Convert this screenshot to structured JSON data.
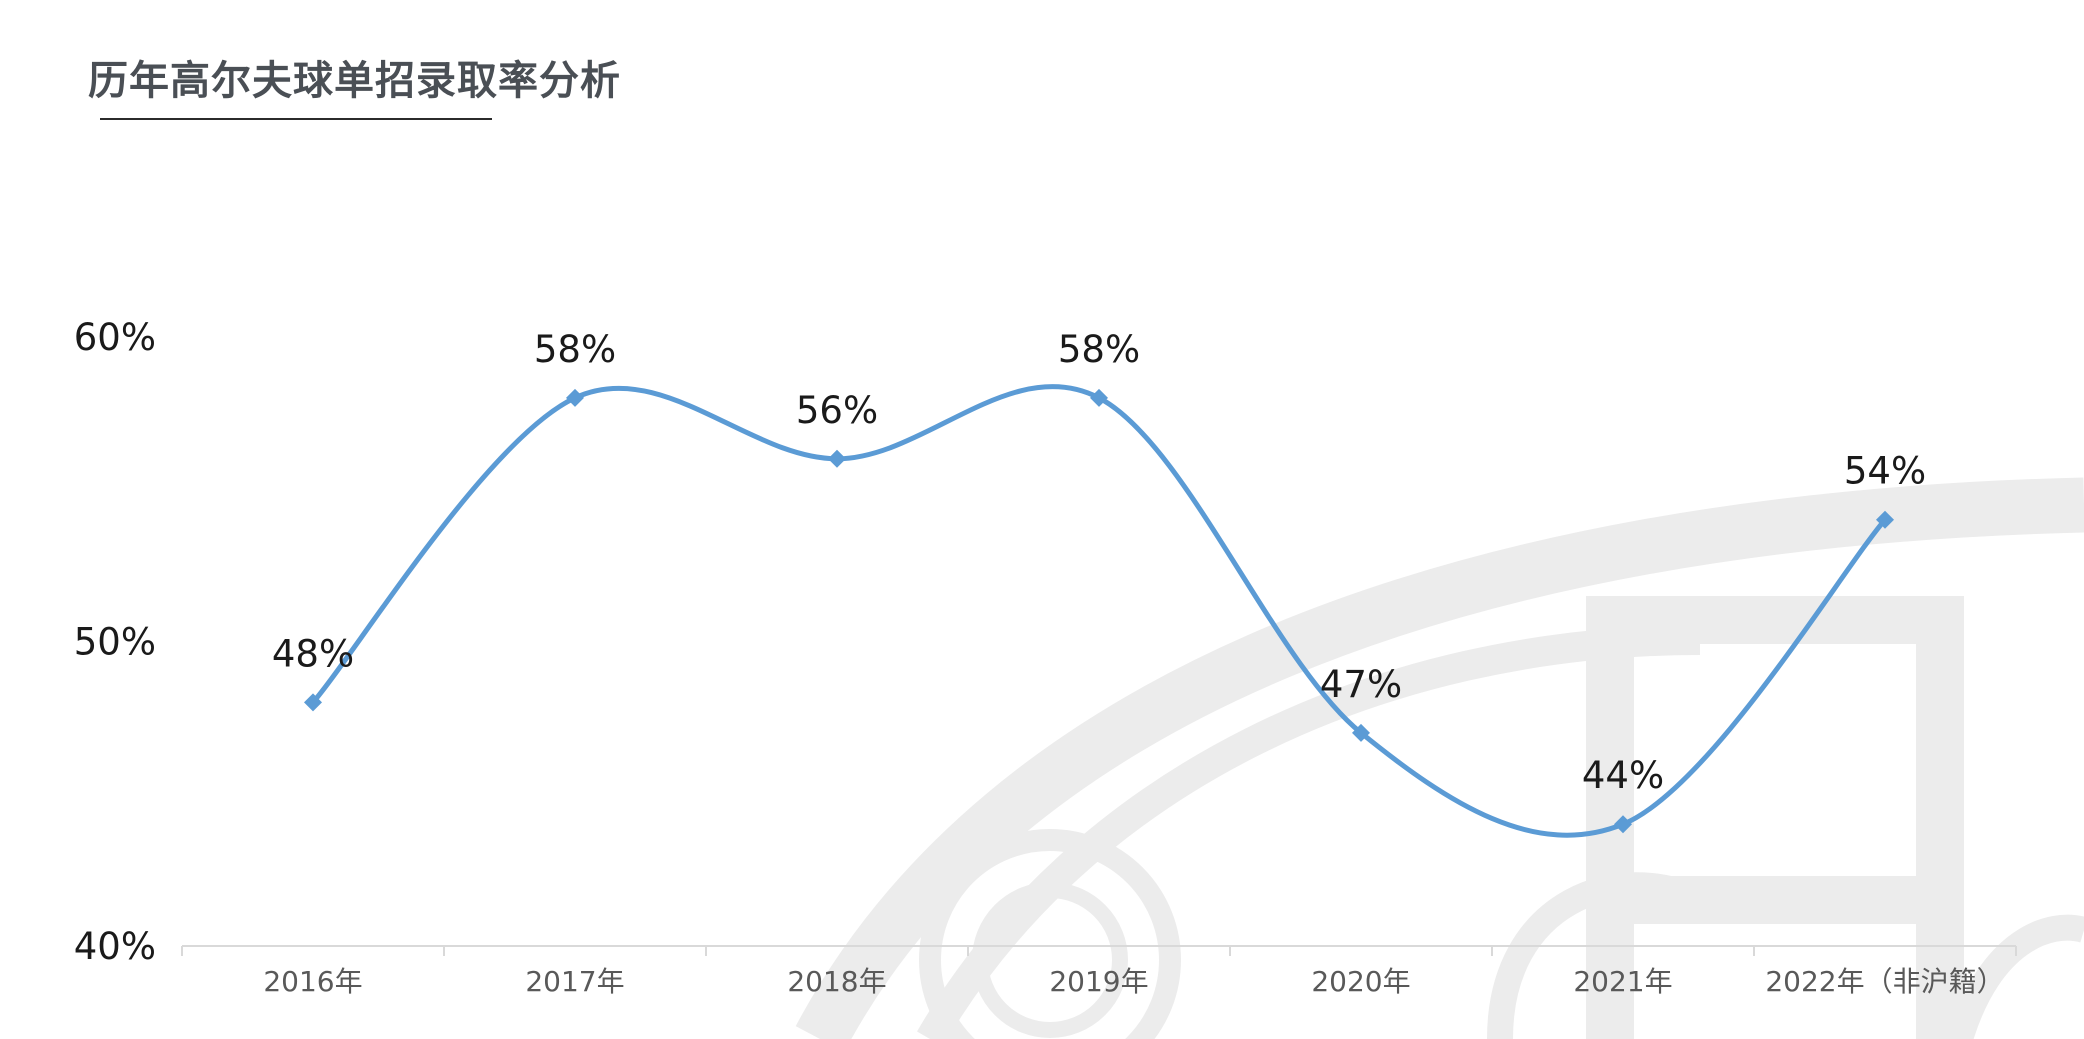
{
  "header": {
    "title": "历年高尔夫球单招录取率分析"
  },
  "chart_data": {
    "type": "line",
    "title": "历年高尔夫球单招录取率分析",
    "xlabel": "",
    "ylabel": "",
    "categories": [
      "2016年",
      "2017年",
      "2018年",
      "2019年",
      "2020年",
      "2021年",
      "2022年（非沪籍）"
    ],
    "series": [
      {
        "values": [
          48,
          58,
          56,
          58,
          47,
          44,
          54
        ],
        "labels": [
          "48%",
          "58%",
          "56%",
          "58%",
          "47%",
          "44%",
          "54%"
        ],
        "color": "#5b9bd5",
        "marker": "diamond",
        "smooth": true
      }
    ],
    "yticks": [
      40,
      50,
      60
    ],
    "ytick_labels": [
      "40%",
      "50%",
      "60%"
    ],
    "ylim": [
      40,
      60
    ],
    "grid": false,
    "legend": "none"
  },
  "colors": {
    "line": "#5b9bd5",
    "axis": "#d9d9d9",
    "watermark": "#ececec",
    "title": "#4a4f55"
  }
}
